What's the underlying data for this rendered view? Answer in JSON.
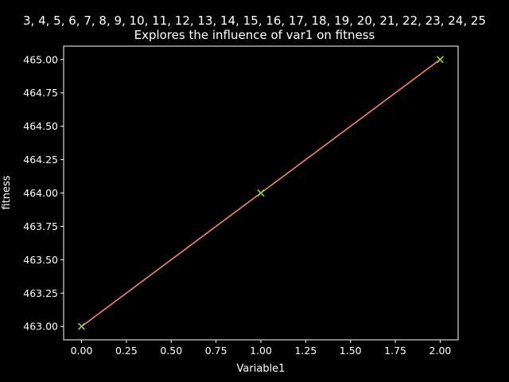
{
  "chart_data": {
    "type": "line",
    "title": "3, 4, 5, 6, 7, 8, 9, 10, 11, 12, 13, 14, 15, 16, 17, 18, 19, 20, 21, 22, 23, 24, 25",
    "subtitle": "Explores the influence of var1 on fitness",
    "xlabel": "Variable1",
    "ylabel": "fitness",
    "xlim": [
      -0.1,
      2.1
    ],
    "ylim": [
      462.9,
      465.1
    ],
    "x_ticks": [
      "0.00",
      "0.25",
      "0.50",
      "0.75",
      "1.00",
      "1.25",
      "1.50",
      "1.75",
      "2.00"
    ],
    "y_ticks": [
      "463.00",
      "463.25",
      "463.50",
      "463.75",
      "464.00",
      "464.25",
      "464.50",
      "464.75",
      "465.00"
    ],
    "grid": false,
    "series": [
      {
        "kind": "line",
        "color": "#fa8072",
        "x": [
          0,
          1,
          2
        ],
        "y": [
          463,
          464,
          465
        ]
      },
      {
        "kind": "scatter",
        "marker": "x",
        "color": "#9acd32",
        "x": [
          0,
          1,
          2
        ],
        "y": [
          463,
          464,
          465
        ]
      }
    ],
    "colors": {
      "background": "#000000",
      "axes": "#ffffff",
      "text": "#ffffff"
    }
  }
}
